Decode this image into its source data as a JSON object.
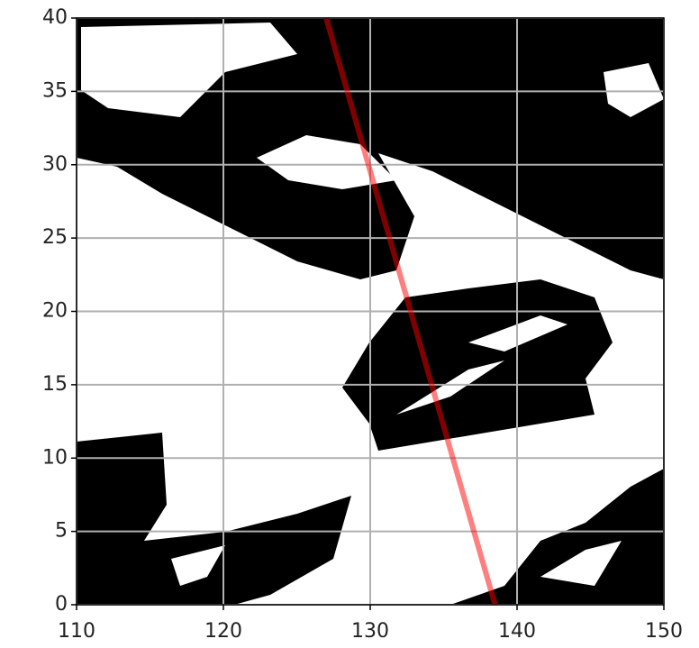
{
  "chart_data": {
    "type": "line",
    "series": [
      {
        "color": "#ff0000",
        "alpha": 0.5,
        "x": [
          127,
          138.5
        ],
        "values": [
          40,
          0
        ]
      }
    ],
    "xlim": [
      110,
      150
    ],
    "xticks": [
      110,
      120,
      130,
      140,
      150
    ],
    "ylim": [
      0,
      40
    ],
    "yticks": [
      0,
      5,
      10,
      15,
      20,
      25,
      30,
      35,
      40
    ],
    "grid": true
  }
}
